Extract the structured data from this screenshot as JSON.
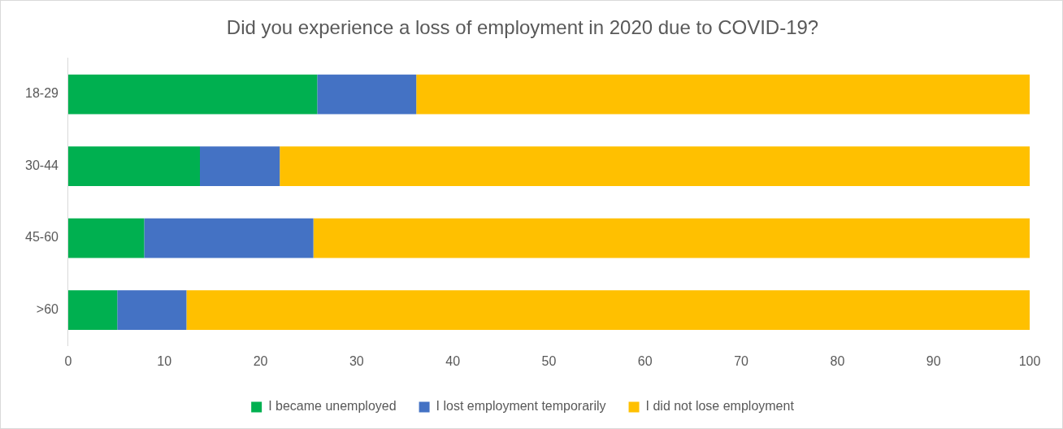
{
  "chart_data": {
    "type": "bar",
    "orientation": "horizontal",
    "stacked": true,
    "title": "Did you experience a loss of employment in 2020 due to COVID-19?",
    "categories": [
      "18-29",
      "30-44",
      "45-60",
      ">60"
    ],
    "series": [
      {
        "name": "I became unemployed",
        "color": "#00b050",
        "values": [
          25.9,
          13.7,
          7.9,
          5.1
        ]
      },
      {
        "name": "I lost employment temporarily",
        "color": "#4472c4",
        "values": [
          10.3,
          8.3,
          17.6,
          7.2
        ]
      },
      {
        "name": "I did not lose employment",
        "color": "#ffc000",
        "values": [
          63.8,
          78.0,
          74.5,
          87.7
        ]
      }
    ],
    "xlim": [
      0,
      100
    ],
    "xticks": [
      0,
      10,
      20,
      30,
      40,
      50,
      60,
      70,
      80,
      90,
      100
    ],
    "grid": false,
    "legend": "bottom"
  }
}
